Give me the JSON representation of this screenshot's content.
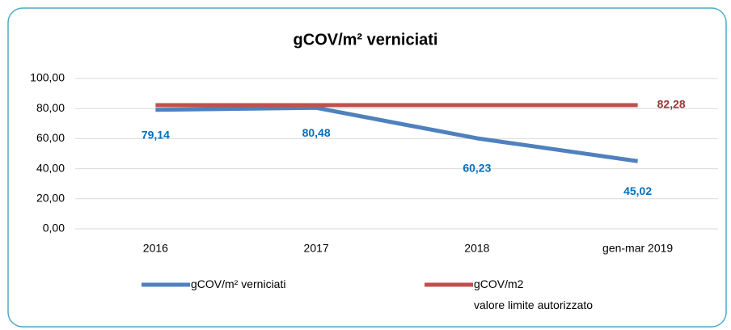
{
  "chart_data": {
    "type": "line",
    "title": "gCOV/m² verniciati",
    "categories": [
      "2016",
      "2017",
      "2018",
      "gen-mar 2019"
    ],
    "series": [
      {
        "name": "gCOV/m² verniciati",
        "color": "#4f81bd",
        "label_color": "#0070c0",
        "values": [
          79.14,
          80.48,
          60.23,
          45.02
        ],
        "value_labels": [
          "79,14",
          "80,48",
          "60,23",
          "45,02"
        ]
      },
      {
        "name": "gCOV/m2\nvalore limite autorizzato",
        "color": "#c0504d",
        "label_color": "#953735",
        "values": [
          82.28,
          82.28,
          82.28,
          82.28
        ],
        "value_labels": [
          null,
          null,
          null,
          "82,28"
        ]
      }
    ],
    "ylim": [
      0,
      100
    ],
    "yticks": [
      {
        "value": 0,
        "label": "0,00"
      },
      {
        "value": 20,
        "label": "20,00"
      },
      {
        "value": 40,
        "label": "40,00"
      },
      {
        "value": 60,
        "label": "60,00"
      },
      {
        "value": 80,
        "label": "80,00"
      },
      {
        "value": 100,
        "label": "100,00"
      }
    ],
    "grid": true,
    "legend": "bottom"
  }
}
